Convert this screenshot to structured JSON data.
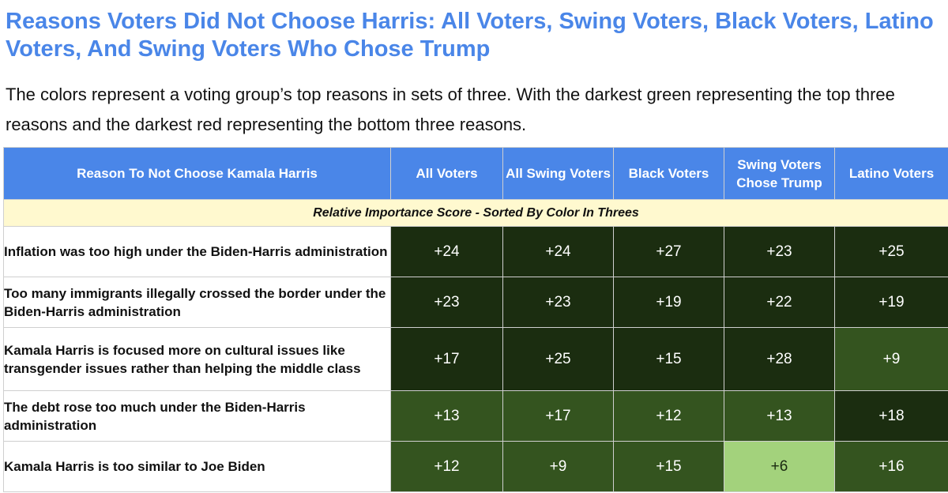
{
  "title": "Reasons Voters Did Not Choose Harris: All Voters, Swing Voters, Black Voters, Latino Voters, And Swing Voters Who Chose Trump",
  "subtitle": "The colors represent a voting group’s top reasons in sets of three. With the darkest green representing the top three reasons and the darkest red representing the bottom three reasons.",
  "colors": {
    "header_bg": "#4a86e8",
    "subheader_bg": "#fff9cf",
    "darkest_green": "#1b2d10",
    "mid_green": "#34541f",
    "light_green": "#a3d27c"
  },
  "chart_data": {
    "type": "table",
    "title": "Reasons Voters Did Not Choose Harris: All Voters, Swing Voters, Black Voters, Latino Voters, And Swing Voters Who Chose Trump",
    "columns": [
      "Reason To Not Choose Kamala Harris",
      "All Voters",
      "All Swing Voters",
      "Black Voters",
      "Swing Voters Chose Trump",
      "Latino Voters"
    ],
    "subheader": "Relative Importance Score - Sorted By Color In Threes",
    "rows": [
      {
        "reason": "Inflation was too high under the Biden-Harris administration",
        "values": [
          "+24",
          "+24",
          "+27",
          "+23",
          "+25"
        ],
        "tiers": [
          "top",
          "top",
          "top",
          "top",
          "top"
        ]
      },
      {
        "reason": "Too many immigrants illegally crossed the border under the Biden-Harris administration",
        "values": [
          "+23",
          "+23",
          "+19",
          "+22",
          "+19"
        ],
        "tiers": [
          "top",
          "top",
          "top",
          "top",
          "top"
        ]
      },
      {
        "reason": "Kamala Harris is focused more on cultural issues like transgender issues rather than helping the middle class",
        "values": [
          "+17",
          "+25",
          "+15",
          "+28",
          "+9"
        ],
        "tiers": [
          "top",
          "top",
          "top",
          "top",
          "second"
        ]
      },
      {
        "reason": "The debt rose too much under the Biden-Harris administration",
        "values": [
          "+13",
          "+17",
          "+12",
          "+13",
          "+18"
        ],
        "tiers": [
          "second",
          "second",
          "second",
          "second",
          "top"
        ]
      },
      {
        "reason": "Kamala Harris is too similar to Joe Biden",
        "values": [
          "+12",
          "+9",
          "+15",
          "+6",
          "+16"
        ],
        "tiers": [
          "second",
          "second",
          "second",
          "third",
          "second"
        ]
      }
    ],
    "tier_colors": {
      "top": "#1b2d10",
      "second": "#34541f",
      "third": "#a3d27c"
    }
  }
}
